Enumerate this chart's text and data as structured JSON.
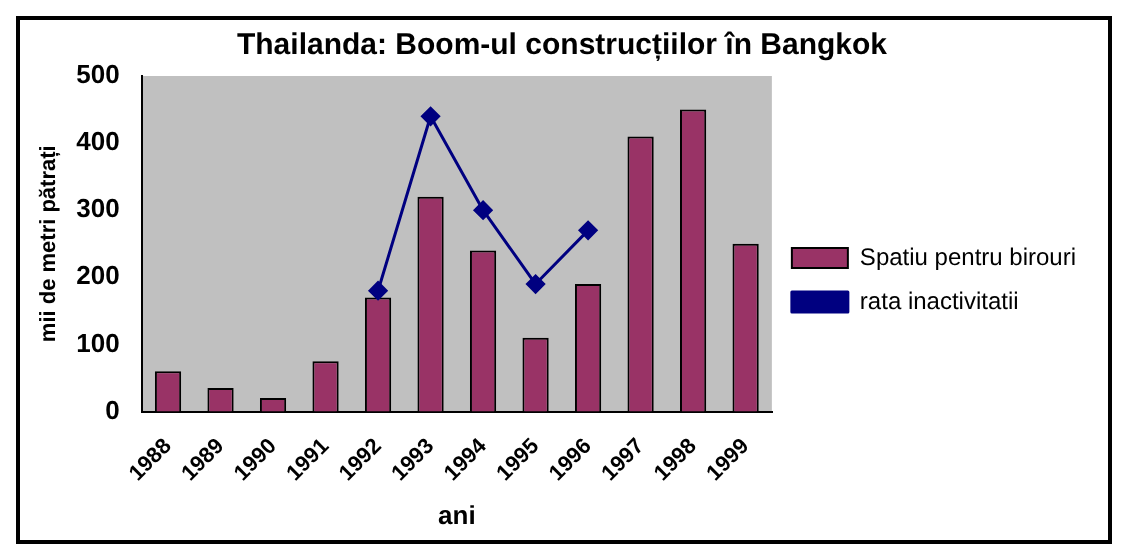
{
  "chart_data": {
    "type": "bar",
    "title": "Thailanda: Boom-ul construcțiilor în Bangkok",
    "xlabel": "ani",
    "ylabel": "mii de metri pătrați",
    "categories": [
      "1988",
      "1989",
      "1990",
      "1991",
      "1992",
      "1993",
      "1994",
      "1995",
      "1996",
      "1997",
      "1998",
      "1999"
    ],
    "series": [
      {
        "name": "Spatiu pentru birouri",
        "color": "#993366",
        "values": [
          60,
          35,
          20,
          75,
          170,
          320,
          240,
          110,
          190,
          410,
          450,
          250
        ]
      },
      {
        "name": "rata inactivitatii",
        "type": "line",
        "color": "#000080",
        "marker": "diamond",
        "values": [
          null,
          null,
          null,
          null,
          180,
          440,
          300,
          190,
          270,
          null,
          null,
          null
        ]
      }
    ],
    "ylim": [
      0,
      500
    ],
    "yticks": [
      0,
      100,
      200,
      300,
      400,
      500
    ],
    "grid": false,
    "legend": "right"
  }
}
